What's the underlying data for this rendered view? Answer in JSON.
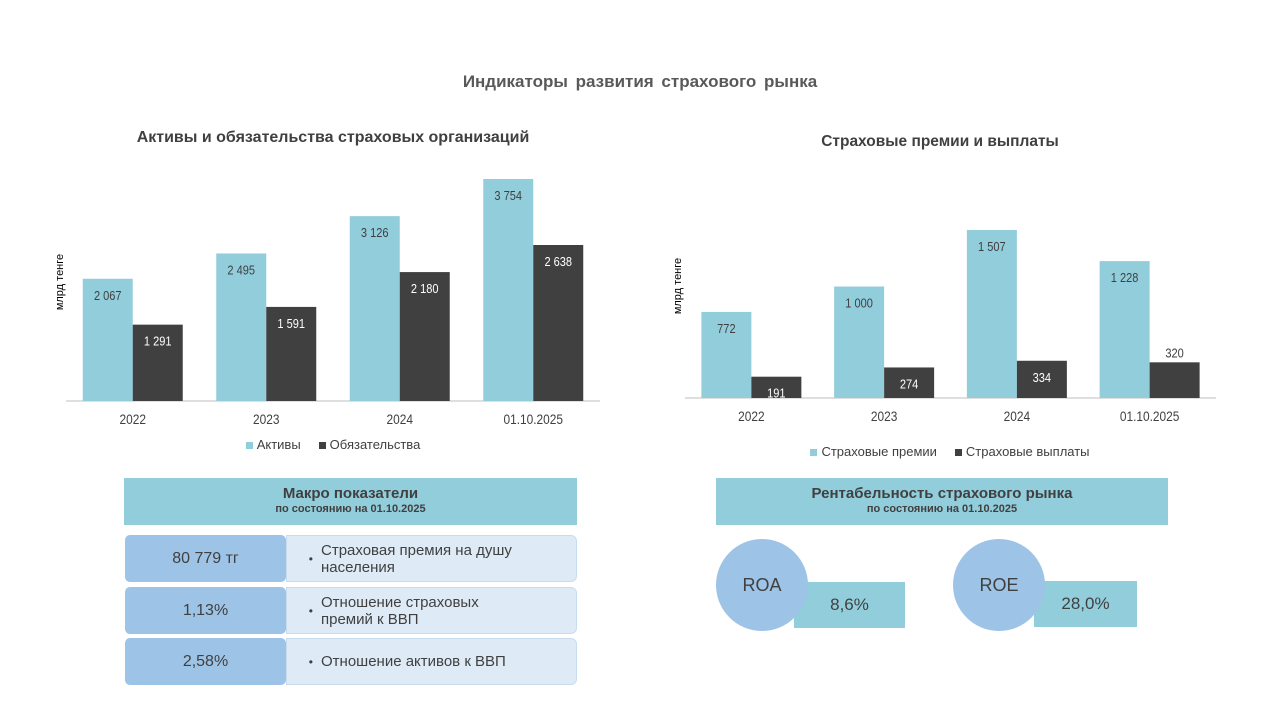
{
  "page": {
    "title": "Индикаторы развития страхового рынка"
  },
  "colors": {
    "light": "#92cddc",
    "dark": "#404040",
    "circle": "#9dc3e6",
    "desc_bg": "#deebf7"
  },
  "chart_data": [
    {
      "type": "bar",
      "title": "Активы и обязательства страховых организаций",
      "ylabel": "млрд тенге",
      "xlabel": "",
      "categories": [
        "2022",
        "2023",
        "2024",
        "01.10.2025"
      ],
      "series": [
        {
          "name": "Активы",
          "color": "#92cddc",
          "values": [
            2067,
            2495,
            3126,
            3754
          ],
          "labels": [
            "2 067",
            "2 495",
            "3 126",
            "3 754"
          ]
        },
        {
          "name": "Обязательства",
          "color": "#404040",
          "values": [
            1291,
            1591,
            2180,
            2638
          ],
          "labels": [
            "1 291",
            "1 591",
            "2 180",
            "2 638"
          ]
        }
      ],
      "ylim": [
        0,
        3754
      ],
      "grid": false,
      "legend": "bottom"
    },
    {
      "type": "bar",
      "title": "Страховые премии и выплаты",
      "ylabel": "млрд тенге",
      "xlabel": "",
      "categories": [
        "2022",
        "2023",
        "2024",
        "01.10.2025"
      ],
      "series": [
        {
          "name": "Страховые премии",
          "color": "#92cddc",
          "values": [
            772,
            1000,
            1507,
            1228
          ],
          "labels": [
            "772",
            "1 000",
            "1 507",
            "1 228"
          ]
        },
        {
          "name": "Страховые выплаты",
          "color": "#404040",
          "values": [
            191,
            274,
            334,
            320
          ],
          "labels": [
            "191",
            "274",
            "334",
            "320"
          ]
        }
      ],
      "ylim": [
        0,
        1507
      ],
      "grid": false,
      "legend": "bottom"
    }
  ],
  "macro": {
    "title": "Макро показатели",
    "subtitle": "по состоянию на 01.10.2025",
    "rows": [
      {
        "value": "80 779 тг",
        "desc": "Страховая премия на душу населения"
      },
      {
        "value": "1,13%",
        "desc": "Отношение страховых премий к ВВП"
      },
      {
        "value": "2,58%",
        "desc": "Отношение активов к ВВП"
      }
    ]
  },
  "profitability": {
    "title": "Рентабельность страхового рынка",
    "subtitle": "по состоянию на 01.10.2025",
    "items": [
      {
        "label": "ROA",
        "value": "8,6%"
      },
      {
        "label": "ROE",
        "value": "28,0%"
      }
    ]
  }
}
